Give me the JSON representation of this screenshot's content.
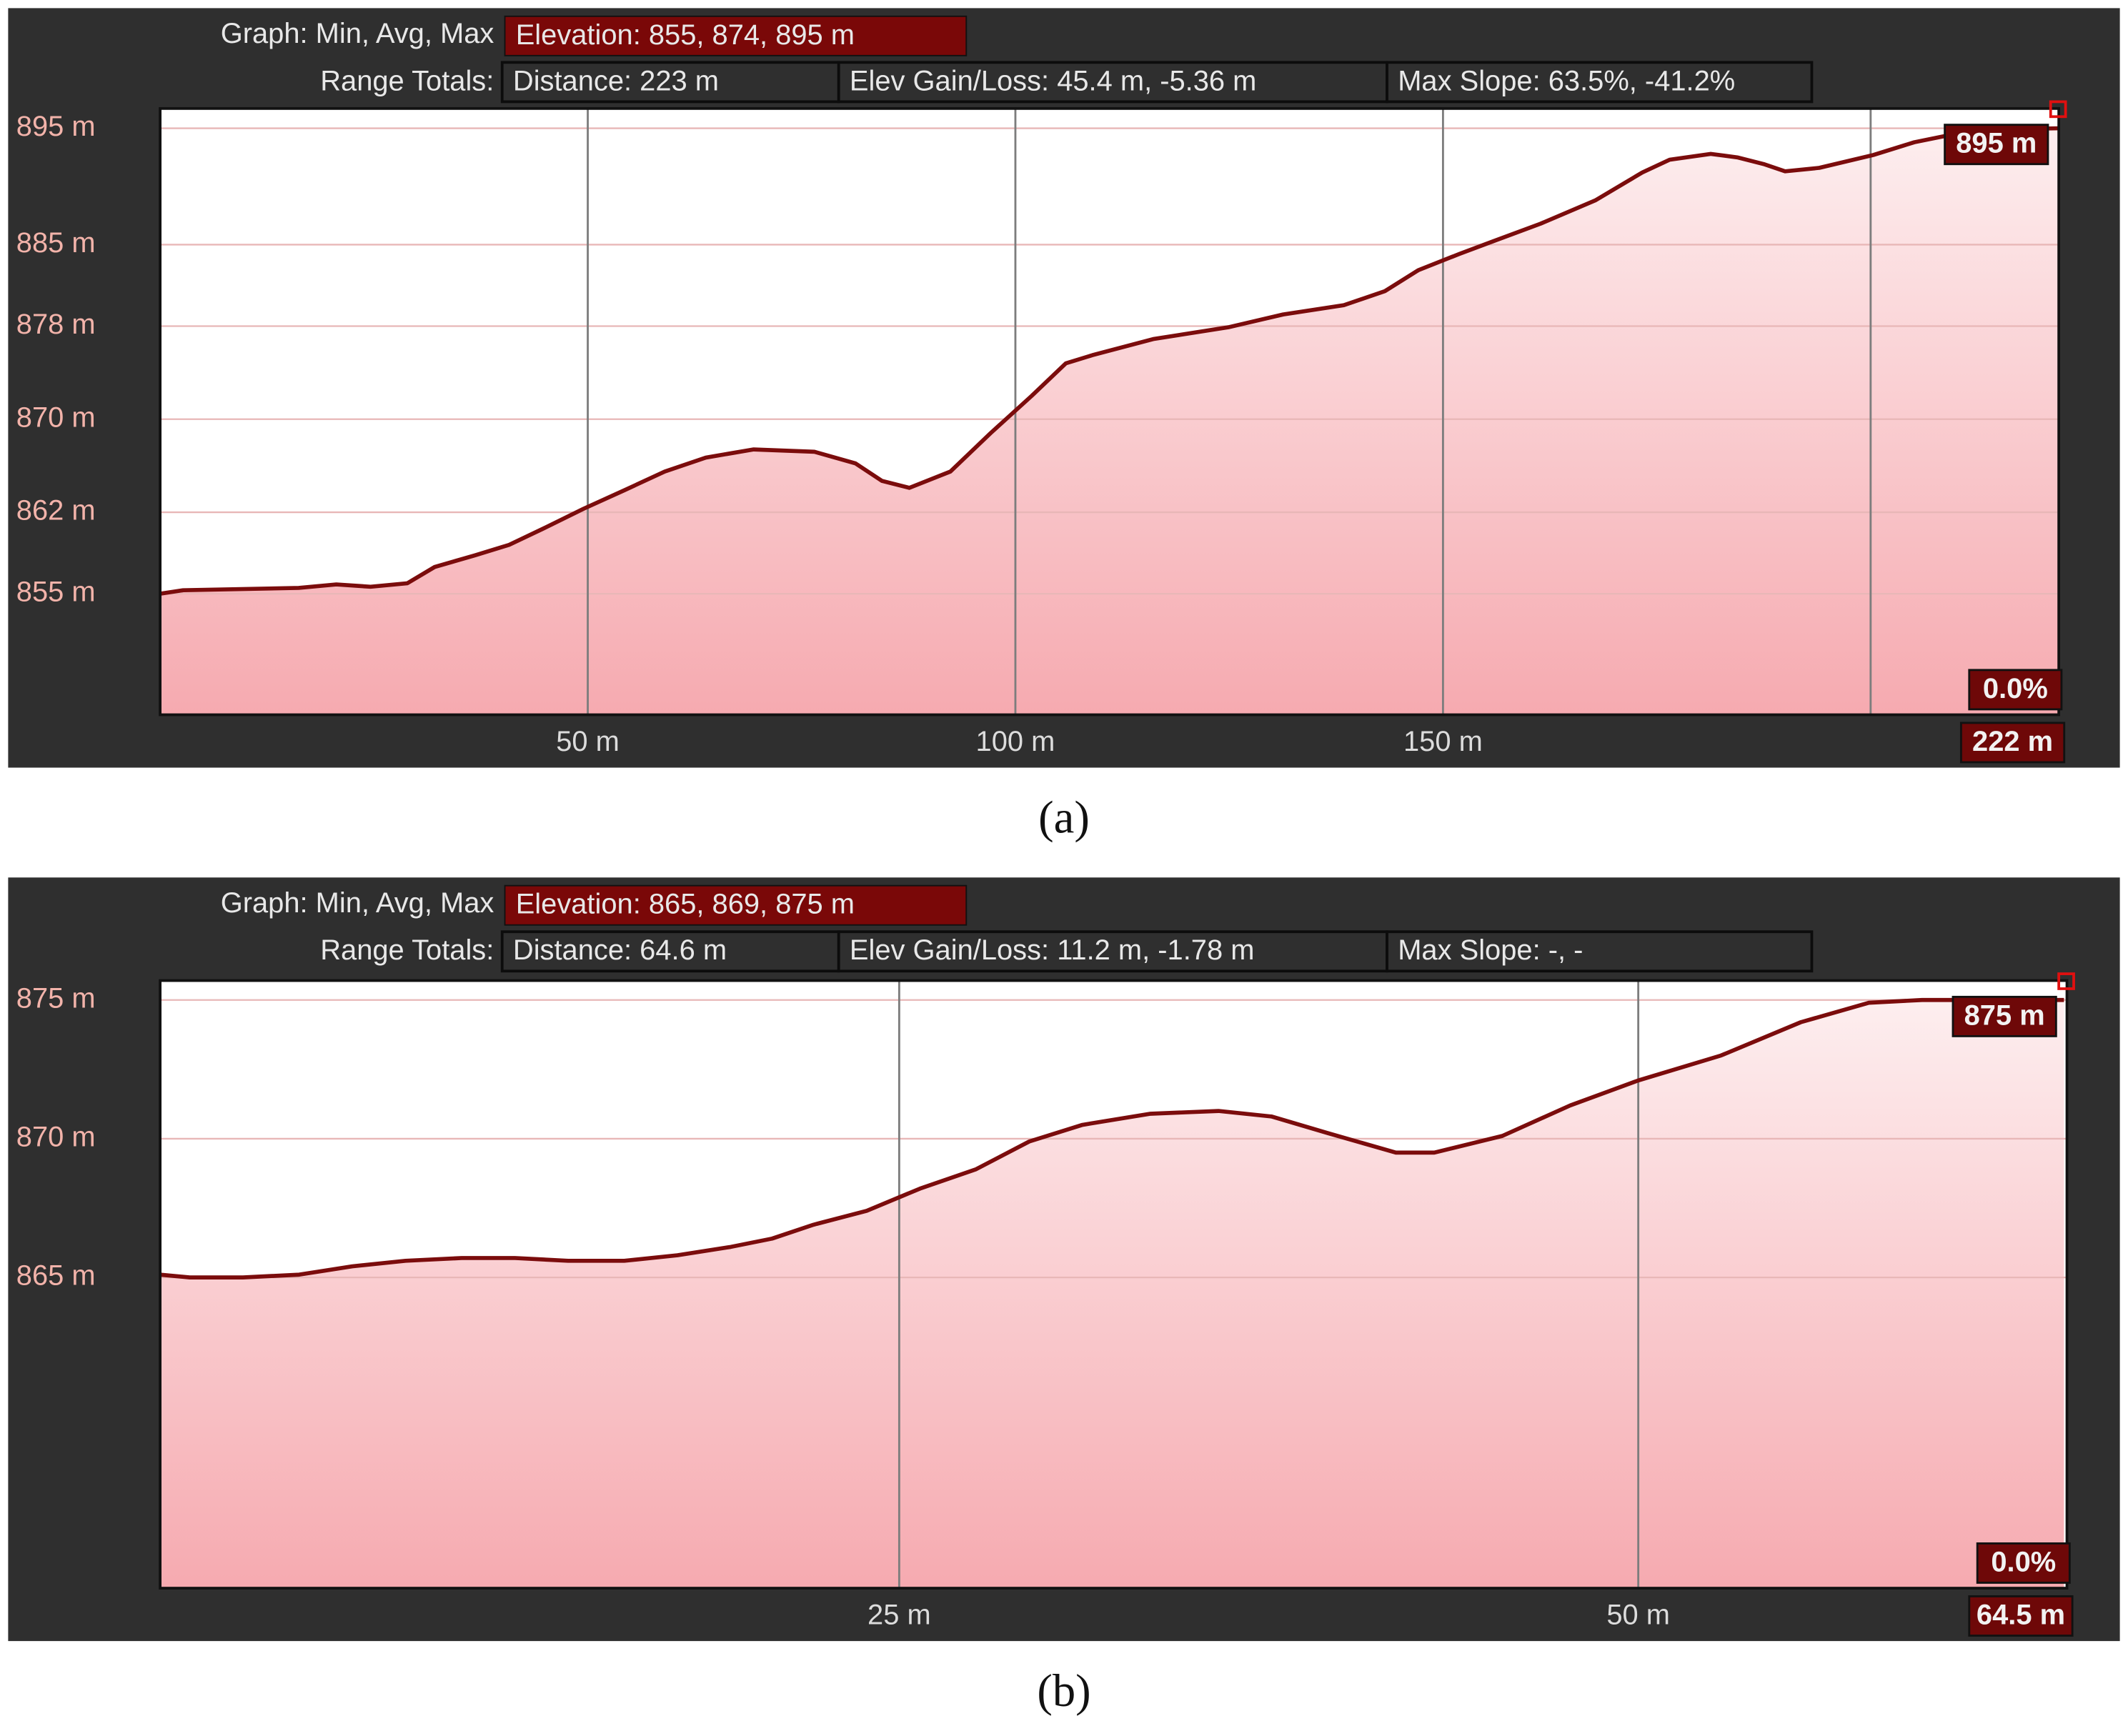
{
  "chart_data": [
    {
      "type": "area",
      "header": {
        "graph_label": "Graph: Min, Avg, Max",
        "elevation": "Elevation: 855, 874, 895 m",
        "range_label": "Range Totals:",
        "distance": "Distance: 223 m",
        "elev_gain_loss": "Elev Gain/Loss: 45.4 m, -5.36 m",
        "max_slope": "Max Slope: 63.5%, -41.2%"
      },
      "end_elevation_label": "895 m",
      "slope_label": "0.0%",
      "end_distance_label": "222 m",
      "caption": "(a)",
      "x": [
        0,
        2.7,
        16.2,
        20.6,
        24.6,
        28.9,
        32.1,
        36.8,
        40.8,
        44.8,
        49.5,
        54.3,
        59.0,
        63.8,
        69.4,
        76.5,
        81.3,
        84.4,
        87.6,
        92.4,
        97.1,
        101.9,
        105.9,
        109.0,
        116.2,
        124.9,
        131.3,
        138.4,
        143.2,
        147.1,
        151.9,
        155.9,
        161.4,
        167.8,
        173.3,
        176.5,
        181.3,
        184.4,
        187.6,
        190.0,
        194.0,
        200.3,
        205.1,
        209.8,
        214.6,
        222
      ],
      "series": [
        {
          "color": "#7b0c0c",
          "values": [
            855.0,
            855.3,
            855.5,
            855.8,
            855.6,
            855.9,
            857.3,
            858.3,
            859.2,
            860.6,
            862.3,
            863.9,
            865.5,
            866.7,
            867.4,
            867.2,
            866.2,
            864.7,
            864.1,
            865.5,
            868.8,
            872.0,
            874.8,
            875.5,
            876.9,
            877.9,
            879.0,
            879.8,
            881.0,
            882.8,
            884.2,
            885.3,
            886.8,
            888.8,
            891.2,
            892.3,
            892.8,
            892.5,
            891.9,
            891.3,
            891.6,
            892.7,
            893.8,
            894.5,
            894.9,
            895.0
          ]
        }
      ],
      "xlim": [
        0,
        222
      ],
      "ylim": [
        844.6,
        896.7
      ],
      "xticks": [
        {
          "value": 50,
          "label": "50 m"
        },
        {
          "value": 100,
          "label": "100 m"
        },
        {
          "value": 150,
          "label": "150 m"
        },
        {
          "value": 200,
          "label": null
        }
      ],
      "yticks": [
        {
          "value": 855,
          "label": "855 m"
        },
        {
          "value": 862,
          "label": "862 m"
        },
        {
          "value": 870,
          "label": "870 m"
        },
        {
          "value": 878,
          "label": "878 m"
        },
        {
          "value": 885,
          "label": "885 m"
        },
        {
          "value": 895,
          "label": "895 m"
        }
      ],
      "grid": true
    },
    {
      "type": "area",
      "header": {
        "graph_label": "Graph: Min, Avg, Max",
        "elevation": "Elevation: 865, 869, 875 m",
        "range_label": "Range Totals:",
        "distance": "Distance: 64.6 m",
        "elev_gain_loss": "Elev Gain/Loss: 11.2 m, -1.78 m",
        "max_slope": "Max Slope: -, -"
      },
      "end_elevation_label": "875 m",
      "slope_label": "0.0%",
      "end_distance_label": "64.5 m",
      "caption": "(b)",
      "x": [
        0,
        1.0,
        2.8,
        4.7,
        6.5,
        8.3,
        10.2,
        12.0,
        13.8,
        15.7,
        17.5,
        19.3,
        20.7,
        22.1,
        23.9,
        25.7,
        27.6,
        29.4,
        31.2,
        33.5,
        35.8,
        37.6,
        39.5,
        41.8,
        43.1,
        45.4,
        47.7,
        50.0,
        52.8,
        55.5,
        57.8,
        59.6,
        61.4,
        64.4
      ],
      "series": [
        {
          "color": "#7b0c0c",
          "values": [
            865.1,
            865.0,
            865.0,
            865.1,
            865.4,
            865.6,
            865.7,
            865.7,
            865.6,
            865.6,
            865.8,
            866.1,
            866.4,
            866.9,
            867.4,
            868.2,
            868.9,
            869.9,
            870.5,
            870.9,
            871.0,
            870.8,
            870.2,
            869.5,
            869.5,
            870.1,
            871.2,
            872.1,
            873.0,
            874.2,
            874.9,
            875.0,
            875.0,
            875.0
          ]
        }
      ],
      "xlim": [
        0,
        64.5
      ],
      "ylim": [
        853.8,
        875.7
      ],
      "xticks": [
        {
          "value": 25,
          "label": "25 m"
        },
        {
          "value": 50,
          "label": "50 m"
        }
      ],
      "yticks": [
        {
          "value": 865,
          "label": "865 m"
        },
        {
          "value": 870,
          "label": "870 m"
        },
        {
          "value": 875,
          "label": "875 m"
        }
      ],
      "grid": true
    }
  ]
}
